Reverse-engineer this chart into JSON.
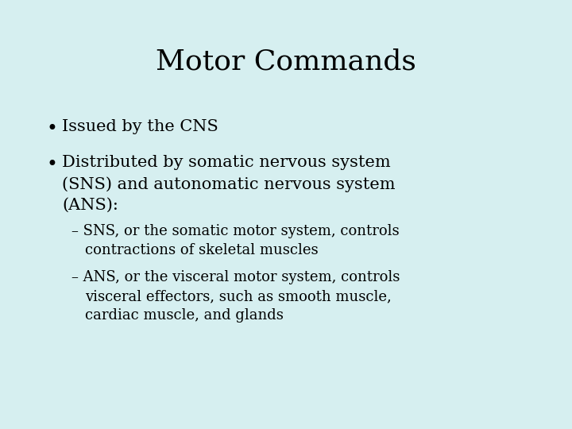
{
  "title": "Motor Commands",
  "background_color": "#d6eff0",
  "text_color": "#000000",
  "title_fontsize": 26,
  "body_fontsize": 15,
  "sub_fontsize": 13,
  "bullet1": "Issued by the CNS",
  "bullet2_line1": "Distributed by somatic nervous system",
  "bullet2_line2": "(SNS) and autonomatic nervous system",
  "bullet2_line3": "(ANS):",
  "sub1_line1": "– SNS, or the somatic motor system, controls",
  "sub1_line2": "contractions of skeletal muscles",
  "sub2_line1": "– ANS, or the visceral motor system, controls",
  "sub2_line2": "visceral effectors, such as smooth muscle,",
  "sub2_line3": "cardiac muscle, and glands"
}
